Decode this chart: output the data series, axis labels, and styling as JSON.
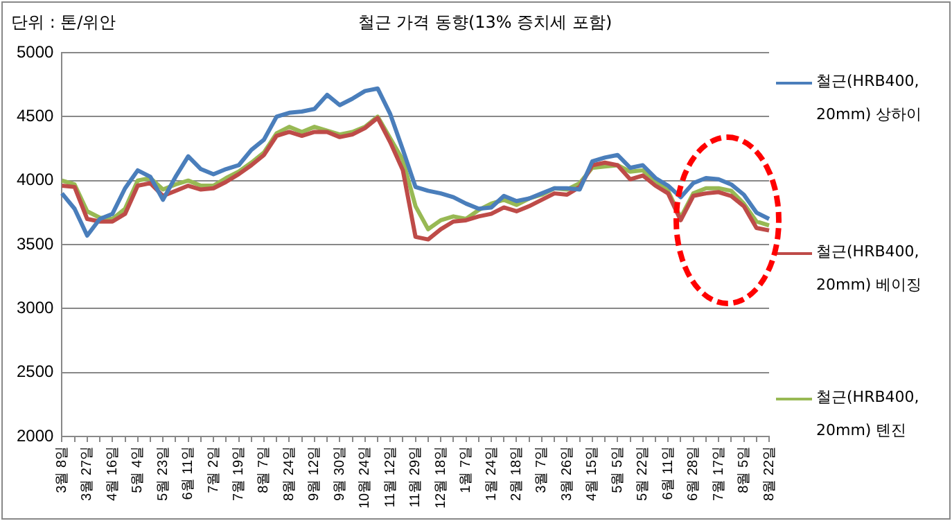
{
  "chart_data": {
    "type": "line",
    "title": "철근 가격 동향(13% 증치세 포함)",
    "ylabel": "단위 : 톤/위안",
    "categories": [
      "3월 8일",
      null,
      "3월 27일",
      null,
      "4월 16일",
      null,
      "5월 4일",
      null,
      "5월 23일",
      null,
      "6월 11일",
      null,
      "7월 2일",
      null,
      "7월 19일",
      null,
      "8월 7일",
      null,
      "8월 24일",
      null,
      "9월 12일",
      null,
      "9월 30일",
      null,
      "10월 24일",
      null,
      "11월 12일",
      null,
      "11월 29일",
      null,
      "12월 18일",
      null,
      "1월 7일",
      null,
      "1월 24일",
      null,
      "2월 18일",
      null,
      "3월 7일",
      null,
      "3월 26일",
      null,
      "4월 15일",
      null,
      "5월 5일",
      null,
      "5월 22일",
      null,
      "6월 11일",
      null,
      "6월 28일",
      null,
      "7월 17일",
      null,
      "8월 5일",
      null,
      "8월 22일"
    ],
    "series": [
      {
        "name": "철근(HRB400, 20mm) 상하이",
        "color": "#4a7ebb",
        "values": [
          3900,
          3780,
          3570,
          3700,
          3740,
          3940,
          4080,
          4030,
          3850,
          4030,
          4190,
          4090,
          4050,
          4090,
          4120,
          4240,
          4320,
          4500,
          4530,
          4540,
          4560,
          4670,
          4590,
          4640,
          4700,
          4720,
          4520,
          4240,
          3950,
          3920,
          3900,
          3870,
          3820,
          3780,
          3790,
          3880,
          3840,
          3860,
          3900,
          3940,
          3940,
          3930,
          4150,
          4180,
          4200,
          4100,
          4120,
          4020,
          3960,
          3870,
          3980,
          4020,
          4010,
          3970,
          3890,
          3750,
          3700
        ]
      },
      {
        "name": "철근(HRB400, 20mm) 베이징",
        "color": "#be4b48",
        "values": [
          3960,
          3950,
          3700,
          3680,
          3680,
          3740,
          3960,
          3980,
          3880,
          3920,
          3960,
          3930,
          3940,
          3990,
          4050,
          4120,
          4200,
          4350,
          4380,
          4350,
          4380,
          4380,
          4340,
          4360,
          4410,
          4490,
          4300,
          4080,
          3560,
          3540,
          3620,
          3680,
          3690,
          3720,
          3740,
          3790,
          3760,
          3800,
          3850,
          3900,
          3890,
          3950,
          4120,
          4140,
          4120,
          4010,
          4040,
          3960,
          3900,
          3690,
          3880,
          3900,
          3910,
          3880,
          3800,
          3630,
          3610
        ]
      },
      {
        "name": "철근(HRB400, 20mm) 톈진",
        "color": "#98b954",
        "values": [
          4000,
          3970,
          3760,
          3710,
          3700,
          3780,
          4000,
          4020,
          3930,
          3970,
          4000,
          3960,
          3960,
          4020,
          4070,
          4140,
          4220,
          4370,
          4420,
          4380,
          4420,
          4390,
          4360,
          4380,
          4420,
          4500,
          4330,
          4160,
          3800,
          3620,
          3690,
          3720,
          3700,
          3770,
          3820,
          3850,
          3810,
          3860,
          3890,
          3940,
          3930,
          3980,
          4100,
          4110,
          4120,
          4070,
          4080,
          4000,
          3920,
          3710,
          3900,
          3940,
          3940,
          3920,
          3820,
          3680,
          3650
        ]
      }
    ],
    "ylim": [
      2000,
      5000
    ],
    "yticks": [
      2000,
      2500,
      3000,
      3500,
      4000,
      4500,
      5000
    ],
    "grid": "y",
    "legend": "right",
    "marker": "none",
    "line_style": "solid"
  }
}
